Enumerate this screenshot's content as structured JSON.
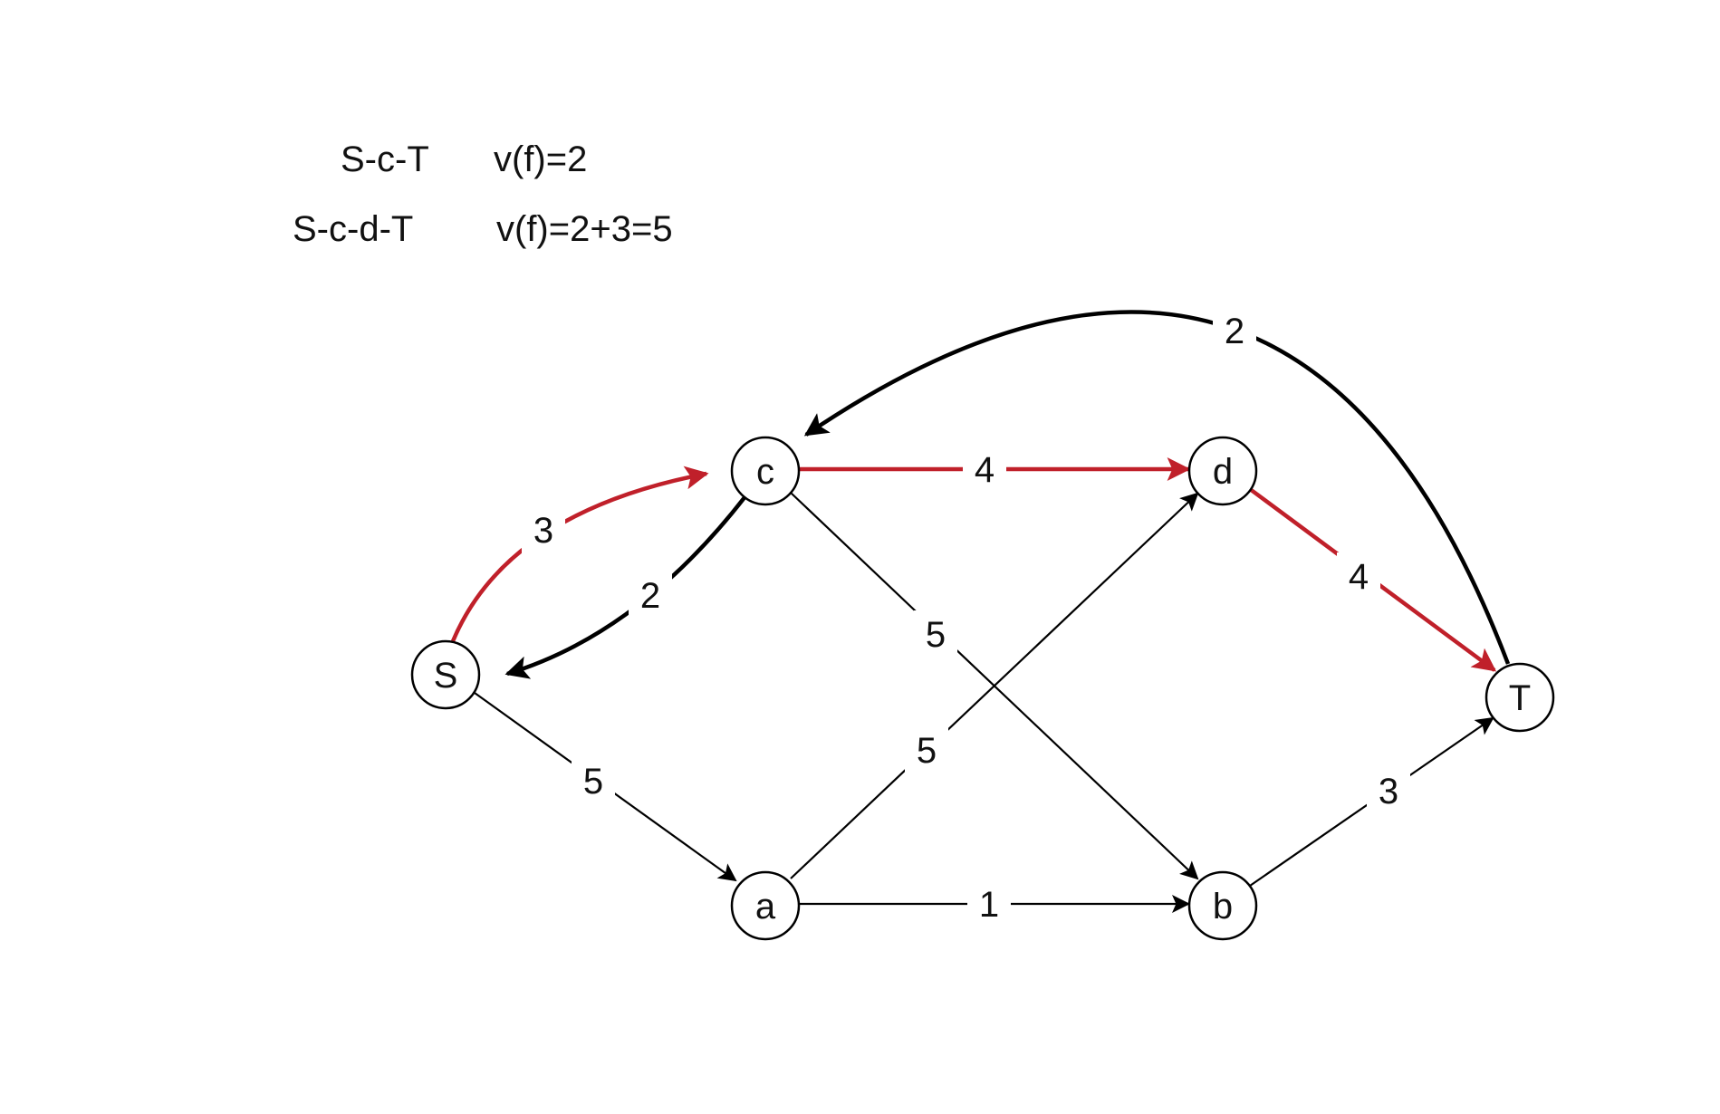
{
  "annotations": [
    {
      "path": "S-c-T",
      "value": "v(f)=2"
    },
    {
      "path": "S-c-d-T",
      "value": "v(f)=2+3=5"
    }
  ],
  "colors": {
    "highlight": "#c0202a",
    "normal": "#000000"
  },
  "nodes": [
    {
      "id": "S",
      "label": "S"
    },
    {
      "id": "c",
      "label": "c"
    },
    {
      "id": "d",
      "label": "d"
    },
    {
      "id": "a",
      "label": "a"
    },
    {
      "id": "b",
      "label": "b"
    },
    {
      "id": "T",
      "label": "T"
    }
  ],
  "edges": [
    {
      "id": "S-c",
      "from": "S",
      "to": "c",
      "capacity": "3",
      "highlighted": true
    },
    {
      "id": "c-S",
      "from": "c",
      "to": "S",
      "capacity": "2",
      "highlighted": false
    },
    {
      "id": "c-d",
      "from": "c",
      "to": "d",
      "capacity": "4",
      "highlighted": true
    },
    {
      "id": "d-T",
      "from": "d",
      "to": "T",
      "capacity": "4",
      "highlighted": true
    },
    {
      "id": "T-c",
      "from": "T",
      "to": "c",
      "capacity": "2",
      "highlighted": false
    },
    {
      "id": "c-b",
      "from": "c",
      "to": "b",
      "capacity": "5",
      "highlighted": false
    },
    {
      "id": "a-d",
      "from": "a",
      "to": "d",
      "capacity": "5",
      "highlighted": false
    },
    {
      "id": "S-a",
      "from": "S",
      "to": "a",
      "capacity": "5",
      "highlighted": false
    },
    {
      "id": "a-b",
      "from": "a",
      "to": "b",
      "capacity": "1",
      "highlighted": false
    },
    {
      "id": "b-T",
      "from": "b",
      "to": "T",
      "capacity": "3",
      "highlighted": false
    }
  ]
}
